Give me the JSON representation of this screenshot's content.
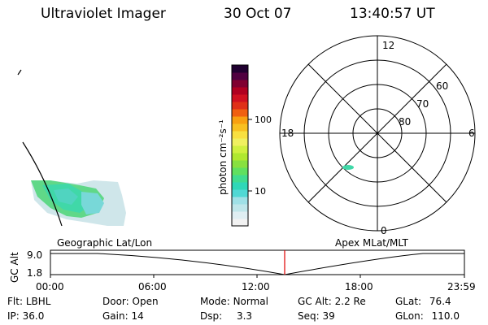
{
  "header": {
    "title": "Ultraviolet Imager",
    "date": "30 Oct 07",
    "time": "13:40:57 UT"
  },
  "colorbar": {
    "unit_label": "photon cm⁻²s⁻¹",
    "ticks": [
      "100",
      "10"
    ],
    "colors": [
      "#f2f2f2",
      "#dfeef2",
      "#bfe6ea",
      "#9fe0e6",
      "#50d8d4",
      "#30d8b8",
      "#40dc90",
      "#60e060",
      "#88e040",
      "#b0e830",
      "#d0f040",
      "#f0f060",
      "#f8e040",
      "#f8c020",
      "#f8a010",
      "#f06010",
      "#e03018",
      "#d01020",
      "#b00020",
      "#800030",
      "#500040",
      "#200030"
    ]
  },
  "polar_plot": {
    "mlt_labels": [
      "12",
      "18",
      "6",
      "0"
    ],
    "lat_labels": [
      "60",
      "70",
      "80"
    ]
  },
  "timeline": {
    "left_title": "Geographic Lat/Lon",
    "right_title": "Apex MLat/MLT",
    "ylabel": "GC Alt",
    "y_ticks": [
      "9.0",
      "1.8"
    ],
    "x_ticks": [
      "00:00",
      "06:00",
      "12:00",
      "18:00",
      "23:59"
    ],
    "current_time_marker": "13:40"
  },
  "status": {
    "flt_label": "Flt:",
    "flt_value": "LBHL",
    "ip_label": "IP:",
    "ip_value": "36.0",
    "door_label": "Door:",
    "door_value": "Open",
    "gain_label": "Gain:",
    "gain_value": "14",
    "mode_label": "Mode:",
    "mode_value": "Normal",
    "dsp_label": "Dsp:",
    "dsp_value": "3.3",
    "gcalt_label": "GC Alt:",
    "gcalt_value": "2.2 Re",
    "seq_label": "Seq:",
    "seq_value": "39",
    "glat_label": "GLat:",
    "glat_value": "76.4",
    "glon_label": "GLon:",
    "glon_value": "110.0"
  }
}
